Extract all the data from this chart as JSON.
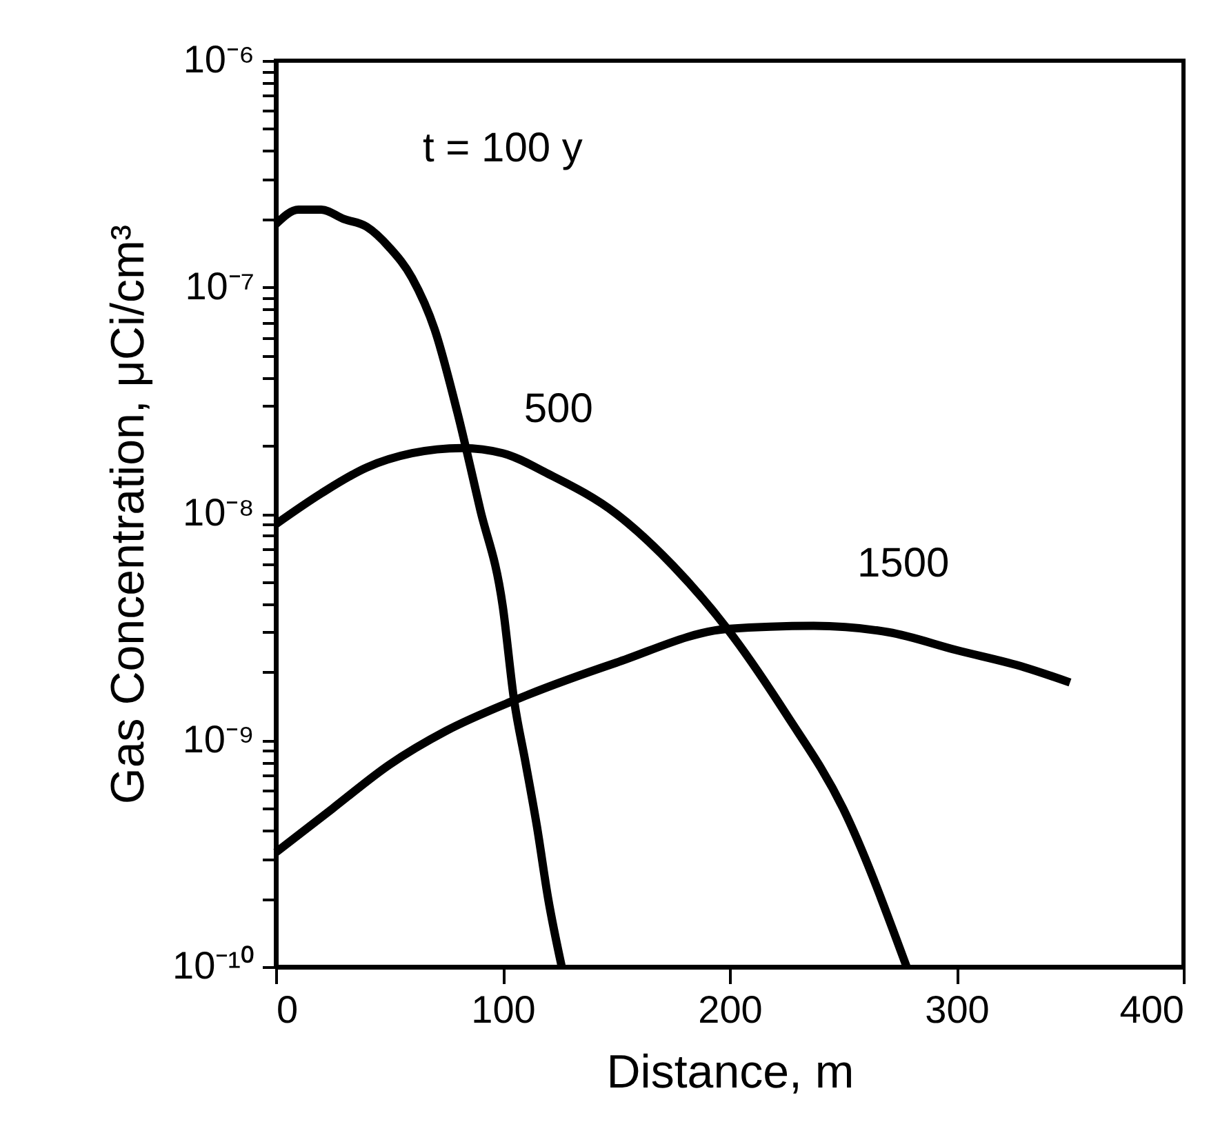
{
  "chart_data": {
    "type": "line",
    "xlabel": "Distance, m",
    "ylabel": "Gas Concentration, μCi/cm³",
    "log": "y",
    "grid": false,
    "marker": "none",
    "line_style": "solid",
    "xlim": [
      0,
      400
    ],
    "xticks": [
      0,
      100,
      200,
      300,
      400
    ],
    "ylim": [
      1e-10,
      1e-06
    ],
    "yticks": [
      {
        "value": 1e-10,
        "label": "10⁻¹⁰"
      },
      {
        "value": 2e-10,
        "label": null
      },
      {
        "value": 3e-10,
        "label": null
      },
      {
        "value": 4e-10,
        "label": null
      },
      {
        "value": 5e-10,
        "label": null
      },
      {
        "value": 6e-10,
        "label": null
      },
      {
        "value": 7e-10,
        "label": null
      },
      {
        "value": 8e-10,
        "label": null
      },
      {
        "value": 9e-10,
        "label": null
      },
      {
        "value": 1e-09,
        "label": "10⁻⁹"
      },
      {
        "value": 2e-09,
        "label": null
      },
      {
        "value": 3e-09,
        "label": null
      },
      {
        "value": 4e-09,
        "label": null
      },
      {
        "value": 5e-09,
        "label": null
      },
      {
        "value": 6e-09,
        "label": null
      },
      {
        "value": 7e-09,
        "label": null
      },
      {
        "value": 8e-09,
        "label": null
      },
      {
        "value": 9e-09,
        "label": null
      },
      {
        "value": 1e-08,
        "label": "10⁻⁸"
      },
      {
        "value": 2e-08,
        "label": null
      },
      {
        "value": 3e-08,
        "label": null
      },
      {
        "value": 4e-08,
        "label": null
      },
      {
        "value": 5e-08,
        "label": null
      },
      {
        "value": 6e-08,
        "label": null
      },
      {
        "value": 7e-08,
        "label": null
      },
      {
        "value": 8e-08,
        "label": null
      },
      {
        "value": 9e-08,
        "label": null
      },
      {
        "value": 1e-07,
        "label": "10⁻⁷"
      },
      {
        "value": 2e-07,
        "label": null
      },
      {
        "value": 3e-07,
        "label": null
      },
      {
        "value": 4e-07,
        "label": null
      },
      {
        "value": 5e-07,
        "label": null
      },
      {
        "value": 6e-07,
        "label": null
      },
      {
        "value": 7e-07,
        "label": null
      },
      {
        "value": 8e-07,
        "label": null
      },
      {
        "value": 9e-07,
        "label": null
      },
      {
        "value": 1e-06,
        "label": "10⁻⁶"
      }
    ],
    "series": [
      {
        "name": "t = 100 y",
        "color": "#000000",
        "x": [
          0,
          10,
          20,
          30,
          40,
          50,
          60,
          70,
          80,
          90,
          100,
          105,
          110,
          115,
          120,
          126
        ],
        "values": [
          1.9e-07,
          2.2e-07,
          2.2e-07,
          2e-07,
          1.85e-07,
          1.5e-07,
          1.1e-07,
          6.5e-08,
          2.8e-08,
          1.05e-08,
          3.9e-09,
          1.5e-09,
          8e-10,
          4.2e-10,
          2e-10,
          1e-10
        ]
      },
      {
        "name": "500",
        "color": "#000000",
        "x": [
          0,
          20,
          40,
          60,
          82,
          100,
          120,
          150,
          175,
          199,
          225,
          250,
          278
        ],
        "values": [
          9e-09,
          1.23e-08,
          1.6e-08,
          1.85e-08,
          1.95e-08,
          1.85e-08,
          1.5e-08,
          1e-08,
          5.9e-09,
          3.1e-09,
          1.3e-09,
          5e-10,
          1e-10
        ]
      },
      {
        "name": "1500",
        "color": "#000000",
        "x": [
          0,
          25,
          50,
          75,
          105,
          150,
          199,
          237,
          270,
          300,
          330,
          350
        ],
        "values": [
          3.2e-10,
          5e-10,
          7.8e-10,
          1.1e-09,
          1.5e-09,
          2.2e-09,
          3.1e-09,
          3.2e-09,
          3e-09,
          2.5e-09,
          2.1e-09,
          1.8e-09
        ]
      }
    ]
  }
}
